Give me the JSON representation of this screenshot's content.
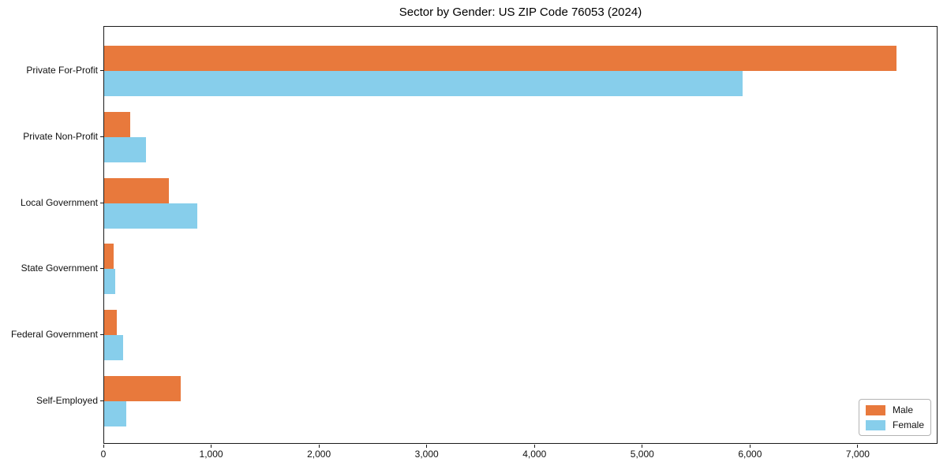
{
  "chart_data": {
    "type": "bar",
    "orientation": "horizontal",
    "title": "Sector by Gender: US ZIP Code 76053 (2024)",
    "categories": [
      "Private For-Profit",
      "Private Non-Profit",
      "Local Government",
      "State Government",
      "Federal Government",
      "Self-Employed"
    ],
    "series": [
      {
        "name": "Male",
        "color": "#e8793c",
        "values": [
          7350,
          240,
          600,
          90,
          115,
          710
        ]
      },
      {
        "name": "Female",
        "color": "#87ceeb",
        "values": [
          5920,
          390,
          865,
          100,
          175,
          205
        ]
      }
    ],
    "xlabel": "",
    "ylabel": "",
    "xlim": [
      0,
      7740
    ],
    "xticks": [
      0,
      1000,
      2000,
      3000,
      4000,
      5000,
      6000,
      7000
    ],
    "xtick_labels": [
      "0",
      "1,000",
      "2,000",
      "3,000",
      "4,000",
      "5,000",
      "6,000",
      "7,000"
    ],
    "grid": false,
    "legend": {
      "position": "lower right",
      "entries": [
        "Male",
        "Female"
      ]
    }
  }
}
